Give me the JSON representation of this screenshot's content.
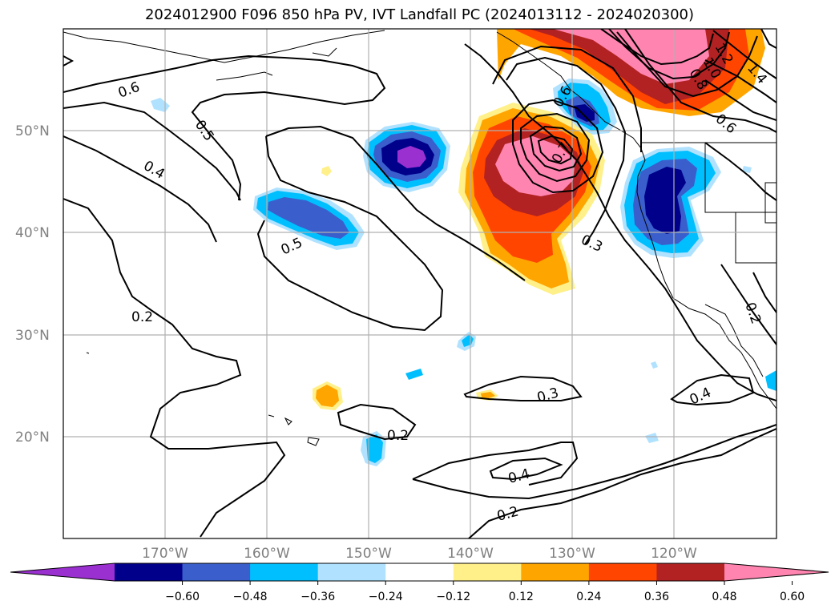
{
  "title": "2024012900 F096 850 hPa PV, IVT Landfall PC (2024013112 - 2024020300)",
  "map": {
    "lat_labels": [
      "50°N",
      "40°N",
      "30°N",
      "20°N"
    ],
    "lon_labels": [
      "170°W",
      "160°W",
      "150°W",
      "140°W",
      "130°W",
      "120°W"
    ],
    "contour_labels": [
      "0.6",
      "0.5",
      "0.4",
      "0.5",
      "0.2",
      "0.3",
      "0.2",
      "0.4",
      "0.2",
      "0.3",
      "0.4",
      "0.2",
      "0.7",
      "0.6",
      "1.2",
      "1.0",
      "0.8",
      "1.4",
      "0.6"
    ]
  },
  "colorbar": {
    "ticks": [
      "−0.60",
      "−0.48",
      "−0.36",
      "−0.24",
      "−0.12",
      "0.12",
      "0.24",
      "0.36",
      "0.48",
      "0.60"
    ],
    "colors": [
      "#9b30d0",
      "#00008b",
      "#3a5fcd",
      "#00bfff",
      "#b0e2ff",
      "#ffffff",
      "#fff08a",
      "#ffa500",
      "#ff4500",
      "#b22222",
      "#ff85b0"
    ]
  }
}
